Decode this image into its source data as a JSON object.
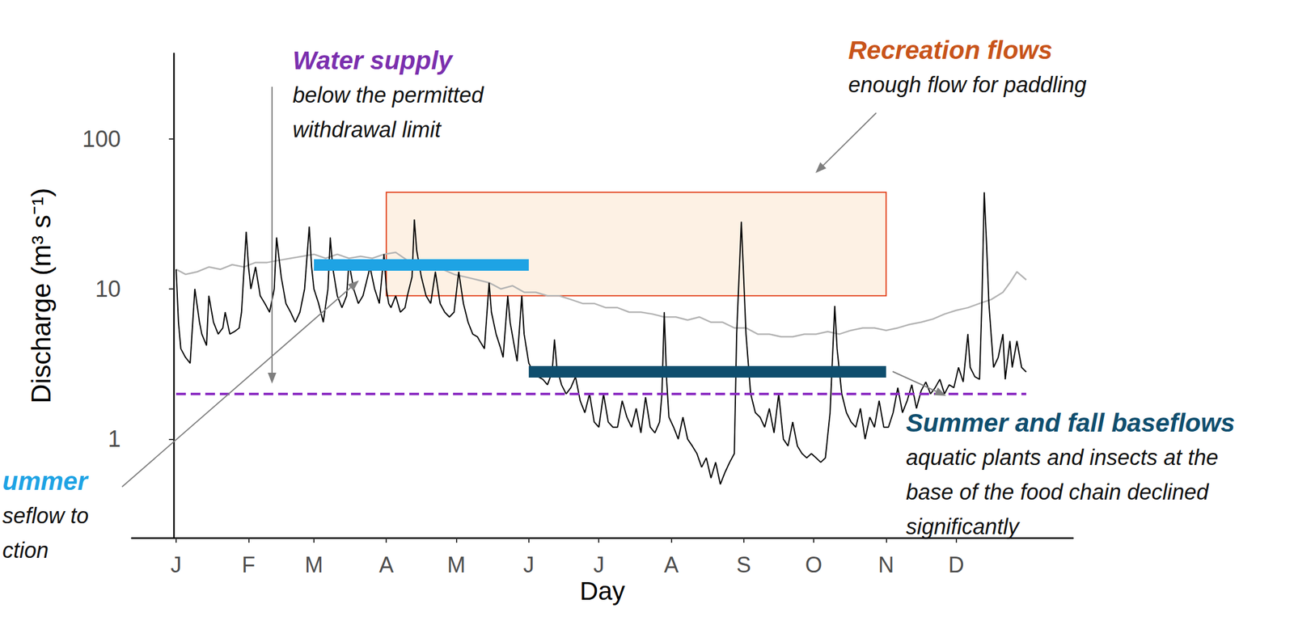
{
  "chart_data": {
    "type": "line",
    "x_label": "Day",
    "y_label": "Discharge (m³ s⁻¹)",
    "log": "y",
    "grid": false,
    "xlim": [
      -18,
      385
    ],
    "ylim": [
      0.22,
      370
    ],
    "xticks": [
      {
        "value": 1,
        "label": "J"
      },
      {
        "value": 32,
        "label": "F"
      },
      {
        "value": 60,
        "label": "M"
      },
      {
        "value": 91,
        "label": "A"
      },
      {
        "value": 121,
        "label": "M"
      },
      {
        "value": 152,
        "label": "J"
      },
      {
        "value": 182,
        "label": "J"
      },
      {
        "value": 213,
        "label": "A"
      },
      {
        "value": 244,
        "label": "S"
      },
      {
        "value": 274,
        "label": "O"
      },
      {
        "value": 305,
        "label": "N"
      },
      {
        "value": 335,
        "label": "D"
      }
    ],
    "yticks": [
      1,
      10,
      100
    ],
    "series": [
      {
        "color": "#b3b3b3",
        "x": [
          1,
          5,
          10,
          15,
          20,
          25,
          30,
          35,
          40,
          45,
          50,
          55,
          60,
          65,
          70,
          75,
          80,
          85,
          90,
          95,
          100,
          105,
          110,
          115,
          120,
          125,
          130,
          135,
          140,
          145,
          150,
          155,
          160,
          165,
          170,
          175,
          180,
          185,
          190,
          195,
          200,
          205,
          210,
          215,
          220,
          225,
          230,
          235,
          240,
          245,
          250,
          255,
          260,
          265,
          270,
          275,
          280,
          285,
          290,
          295,
          300,
          305,
          310,
          315,
          320,
          325,
          330,
          335,
          340,
          345,
          350,
          355,
          358,
          361,
          365
        ],
        "values": [
          13.5,
          12.5,
          13,
          14,
          13.5,
          14.5,
          14,
          15,
          15,
          15.5,
          16,
          16.5,
          17,
          16,
          17,
          16,
          16.5,
          16,
          17,
          17.5,
          15.5,
          14.5,
          14,
          13.5,
          12.5,
          12,
          11.5,
          11,
          10,
          10.5,
          9.5,
          9.5,
          9,
          9,
          8.5,
          8,
          8,
          7.5,
          7.5,
          7,
          7,
          6.8,
          6.5,
          6.5,
          6.2,
          6.5,
          6,
          6,
          5.5,
          5.5,
          5,
          5,
          4.8,
          4.8,
          5,
          5,
          5.2,
          5,
          5.3,
          5.5,
          5.5,
          5.3,
          5.5,
          5.8,
          6,
          6.3,
          6.8,
          7.2,
          7.5,
          8,
          8.5,
          9.5,
          11,
          13,
          11.5
        ]
      },
      {
        "color": "#000000",
        "x": [
          1,
          2,
          3,
          5,
          7,
          9,
          11,
          12,
          14,
          15,
          17,
          19,
          21,
          22,
          24,
          26,
          28,
          29,
          31,
          32,
          33,
          35,
          37,
          39,
          41,
          43,
          44,
          46,
          48,
          50,
          52,
          54,
          56,
          58,
          59,
          60,
          62,
          64,
          66,
          67,
          68,
          70,
          72,
          74,
          75,
          77,
          79,
          81,
          83,
          84,
          86,
          88,
          90,
          91,
          92,
          93,
          95,
          97,
          99,
          100,
          102,
          103,
          104,
          106,
          108,
          110,
          112,
          114,
          116,
          118,
          120,
          122,
          124,
          126,
          128,
          130,
          131,
          133,
          135,
          136,
          138,
          140,
          141,
          143,
          144,
          146,
          147,
          149,
          150,
          152,
          154,
          156,
          158,
          160,
          162,
          163,
          164,
          166,
          168,
          170,
          172,
          174,
          176,
          178,
          180,
          182,
          184,
          186,
          188,
          190,
          192,
          194,
          196,
          198,
          200,
          202,
          204,
          206,
          208,
          209,
          210,
          211,
          212,
          214,
          216,
          218,
          220,
          222,
          224,
          226,
          228,
          230,
          232,
          234,
          236,
          238,
          240,
          241,
          243,
          244,
          245,
          247,
          249,
          251,
          253,
          255,
          257,
          259,
          261,
          263,
          265,
          267,
          269,
          271,
          273,
          275,
          277,
          279,
          281,
          283,
          284,
          286,
          288,
          290,
          292,
          294,
          296,
          298,
          300,
          302,
          304,
          306,
          308,
          310,
          312,
          314,
          316,
          318,
          320,
          322,
          324,
          326,
          328,
          330,
          332,
          334,
          336,
          338,
          340,
          341,
          343,
          345,
          346,
          347,
          348,
          349,
          351,
          353,
          355,
          356,
          358,
          359,
          361,
          363,
          365
        ],
        "values": [
          13.5,
          6,
          4,
          3.5,
          3.2,
          10,
          6,
          5,
          4.2,
          9,
          6,
          5,
          5.5,
          7,
          5,
          5.2,
          5.5,
          7,
          24,
          14,
          10,
          14,
          9,
          8,
          7,
          10,
          22,
          12,
          8,
          7,
          6,
          7,
          10,
          26,
          14,
          10,
          8,
          6,
          10,
          22,
          14,
          9,
          7.5,
          9,
          15,
          10,
          8,
          9,
          12,
          14,
          10,
          8,
          17,
          10,
          8,
          7.5,
          9,
          7,
          7.5,
          9,
          12,
          29,
          18,
          12,
          9,
          8,
          13,
          8,
          7,
          6.5,
          7,
          13,
          8,
          6,
          5,
          4.8,
          4.5,
          4,
          11,
          7,
          5,
          4,
          3.5,
          9,
          6,
          4,
          3.3,
          9,
          5,
          3.2,
          2.8,
          2.6,
          2.5,
          2.3,
          2.8,
          4.6,
          3,
          2.3,
          2.0,
          2.2,
          2.6,
          1.8,
          1.5,
          2.0,
          1.3,
          1.2,
          2.0,
          1.3,
          1.2,
          1.2,
          1.8,
          1.4,
          1.2,
          1.6,
          1.1,
          1.9,
          1.2,
          1.1,
          1.3,
          2,
          7,
          2.5,
          1.4,
          1.2,
          1.0,
          1.4,
          1.0,
          0.9,
          0.8,
          0.65,
          0.75,
          0.55,
          0.7,
          0.5,
          0.6,
          0.7,
          0.8,
          5,
          28,
          12,
          5,
          2,
          1.5,
          1.4,
          1.2,
          1.6,
          1.1,
          2.0,
          1.0,
          0.9,
          1.3,
          0.9,
          0.8,
          0.75,
          0.8,
          0.75,
          0.7,
          0.75,
          1.5,
          7.7,
          4,
          2,
          1.5,
          1.3,
          1.2,
          1.6,
          1.0,
          1.4,
          1.2,
          1.8,
          1.2,
          1.2,
          1.5,
          2.2,
          1.5,
          1.8,
          2.3,
          1.6,
          2.1,
          2.4,
          2.0,
          2.2,
          2.5,
          2.0,
          2.3,
          2.2,
          3.0,
          2.4,
          5,
          3,
          2.6,
          2.5,
          8,
          44,
          20,
          8,
          3,
          3.5,
          5,
          2.5,
          4.5,
          3,
          4.5,
          3,
          2.8
        ]
      }
    ],
    "annotations": [
      {
        "kind": "band",
        "x": [
          91,
          305
        ],
        "y": [
          9,
          44
        ],
        "color": "#e2421c",
        "fill": "#fdf1e4",
        "title_color": "#c8541a",
        "title": "Recreation flows",
        "text": [
          "enough flow for paddling"
        ]
      },
      {
        "kind": "bar",
        "x": [
          60,
          152
        ],
        "y": 14.5,
        "color": "#1ea3e4",
        "title": "ummer",
        "text": [
          "seflow to",
          "ction"
        ]
      },
      {
        "kind": "bar",
        "x": [
          152,
          305
        ],
        "y": 2.8,
        "color": "#0f4e6e",
        "title": "Summer and fall baseflows",
        "text": [
          "aquatic plants and insects at the",
          "base of the food chain declined",
          "significantly"
        ]
      },
      {
        "kind": "line",
        "x": [
          1,
          365
        ],
        "y": 2,
        "color": "#8a2bc2",
        "line_style": "dashed",
        "title_color": "#7b2fae",
        "title": "Water supply",
        "text": [
          "below the permitted",
          "withdrawal limit"
        ]
      }
    ]
  }
}
